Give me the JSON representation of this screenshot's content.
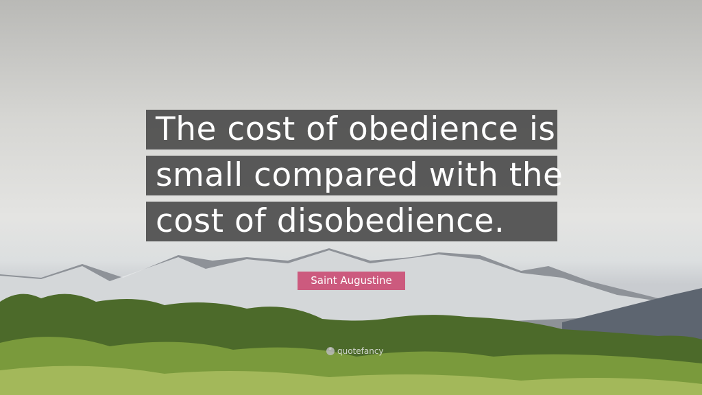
{
  "quote": {
    "lines": [
      "The cost of obedience is",
      "small compared with the",
      "cost of disobedience."
    ]
  },
  "author": "Saint Augustine",
  "brand": "quotefancy",
  "colors": {
    "author_badge": "#cc5a7e",
    "quote_box": "#464646"
  }
}
